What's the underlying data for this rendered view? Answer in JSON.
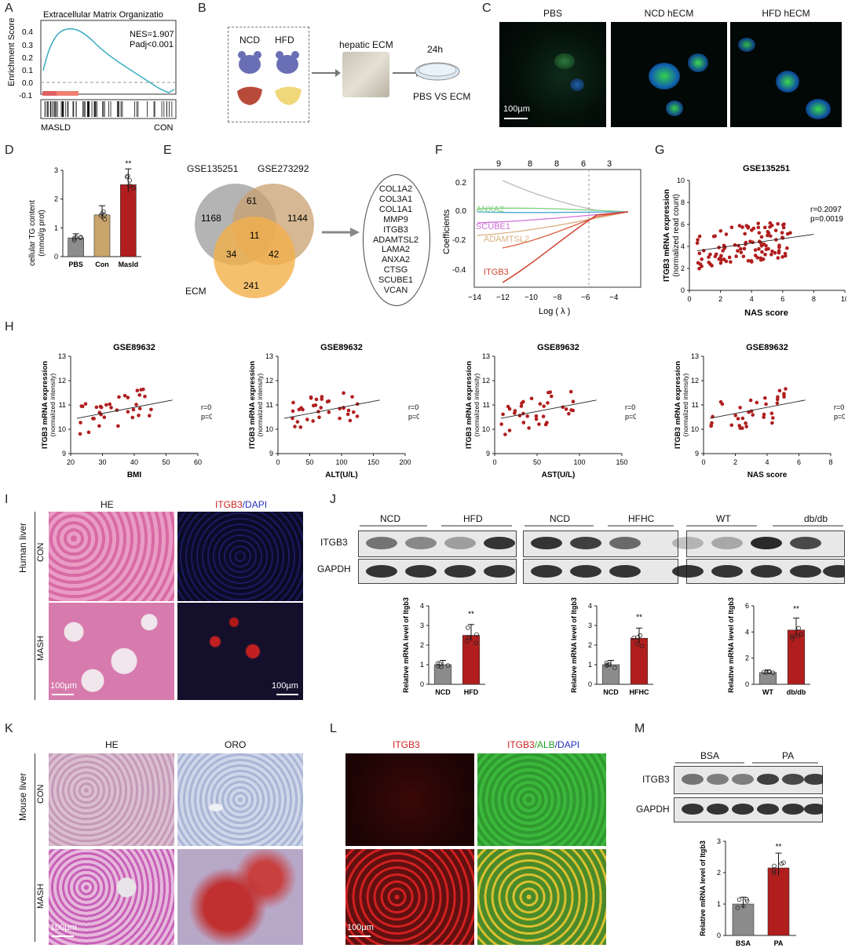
{
  "panel_letters": [
    "A",
    "B",
    "C",
    "D",
    "E",
    "F",
    "G",
    "H",
    "I",
    "J",
    "K",
    "L",
    "M"
  ],
  "A": {
    "title": "Extracellular Matrix Organizatio",
    "ylabel": "Enrichment Score",
    "yticks": [
      "0.4",
      "0.3",
      "0.2",
      "0.1",
      "0.0",
      "-0.1"
    ],
    "nes": "NES=1.907",
    "padj": "Padj<0.001",
    "left_label": "MASLD",
    "right_label": "CON"
  },
  "B": {
    "ncd": "NCD",
    "hfd": "HFD",
    "hepatic_ecm": "hepatic ECM",
    "time": "24h",
    "result": "PBS VS ECM"
  },
  "C": {
    "titles": [
      "PBS",
      "NCD hECM",
      "HFD hECM"
    ],
    "scale": "100µm"
  },
  "D": {
    "ylabel1": "cellular TG content",
    "ylabel2": "(mmol/g prot)",
    "yticks": [
      "0",
      "1",
      "2",
      "3"
    ],
    "sig": "**",
    "chart_data": {
      "type": "bar",
      "categories": [
        "PBS",
        "Con",
        "Masld"
      ],
      "values": [
        0.65,
        1.45,
        2.5
      ],
      "ylabel": "cellular TG content (mmol/g prot)",
      "ylim": [
        0,
        3
      ],
      "colors": [
        "#8c8c8c",
        "#c9a46b",
        "#b01e1e"
      ]
    }
  },
  "E": {
    "sets": [
      "GSE135251",
      "GSE273292",
      "ECM"
    ],
    "counts": [
      "1168",
      "61",
      "1144",
      "11",
      "34",
      "42",
      "241"
    ],
    "genes": [
      "COL1A2",
      "COL3A1",
      "COL1A1",
      "MMP9",
      "ITGB3",
      "ADAMTSL2",
      "LAMA2",
      "ANXA2",
      "CTSG",
      "SCUBE1",
      "VCAN"
    ]
  },
  "F": {
    "ylabel": "Coefficients",
    "xlabel": "Log ( λ )",
    "top_ticks": [
      "9",
      "8",
      "8",
      "6",
      "3"
    ],
    "yticks": [
      "0.2",
      "0.0",
      "-0.2",
      "-0.4"
    ],
    "xticks": [
      "−14",
      "−12",
      "−10",
      "−8",
      "−6",
      "−4"
    ],
    "genes": [
      "ANXA2",
      "SCUBE1",
      "ADAMTSL2",
      "ITGB3"
    ]
  },
  "G": {
    "title": "GSE135251",
    "ylabel1": "ITGB3 mRNA expression",
    "ylabel2": "(normalized read count)",
    "xlabel": "NAS score",
    "r": "r=0.2097",
    "p": "p=0.0019",
    "xticks": [
      "0",
      "2",
      "4",
      "6",
      "8",
      "10"
    ],
    "yticks": [
      "0",
      "2",
      "4",
      "6",
      "8",
      "10"
    ]
  },
  "H": {
    "ylabel1": "ITGB3 mRNA expression",
    "ylabel2": "(normalized intensity)",
    "plots": [
      {
        "title": "GSE89632",
        "xlabel": "BMI",
        "r": "r=0.3152",
        "p": "p=0.0476",
        "xticks": [
          "20",
          "30",
          "40",
          "50",
          "60"
        ]
      },
      {
        "title": "GSE89632",
        "xlabel": "ALT(U/L)",
        "r": "r=0.3315",
        "p": "p=0.0367",
        "xticks": [
          "0",
          "50",
          "100",
          "150",
          "200"
        ]
      },
      {
        "title": "GSE89632",
        "xlabel": "AST(U/L)",
        "r": "r=0.3564",
        "p": "p=0.0240",
        "xticks": [
          "0",
          "50",
          "100",
          "150"
        ]
      },
      {
        "title": "GSE89632",
        "xlabel": "NAS score",
        "r": "r=0.4449",
        "p": "p=0.0034",
        "xticks": [
          "0",
          "2",
          "4",
          "6",
          "8"
        ]
      }
    ],
    "yticks": [
      "9",
      "10",
      "11",
      "12",
      "13"
    ]
  },
  "I": {
    "col1": "HE",
    "col2_a": "ITGB3",
    "col2_b": "/DAPI",
    "row_group": "Human liver",
    "rows": [
      "CON",
      "MASH"
    ],
    "scale": "100µm"
  },
  "J": {
    "groups": [
      {
        "a": "NCD",
        "b": "HFD"
      },
      {
        "a": "NCD",
        "b": "HFHC"
      },
      {
        "a": "WT",
        "b": "db/db"
      }
    ],
    "itgb3": "ITGB3",
    "gapdh": "GAPDH",
    "ylabel": "Relative mRNA  level of Itgb3",
    "sig": "**",
    "charts": [
      {
        "type": "bar",
        "categories": [
          "NCD",
          "HFD"
        ],
        "values": [
          1.0,
          2.5
        ],
        "ylim": [
          0,
          4
        ],
        "yticks": [
          "0",
          "1",
          "2",
          "3",
          "4"
        ]
      },
      {
        "type": "bar",
        "categories": [
          "NCD",
          "HFHC"
        ],
        "values": [
          1.0,
          2.35
        ],
        "ylim": [
          0,
          4
        ],
        "yticks": [
          "0",
          "1",
          "2",
          "3",
          "4"
        ]
      },
      {
        "type": "bar",
        "categories": [
          "WT",
          "db/db"
        ],
        "values": [
          0.9,
          4.15
        ],
        "ylim": [
          0,
          6
        ],
        "yticks": [
          "0",
          "2",
          "4",
          "6"
        ]
      }
    ]
  },
  "K": {
    "col1": "HE",
    "col2": "ORO",
    "row_group": "Mouse  liver",
    "rows": [
      "CON",
      "MASH"
    ],
    "scale": "100µm"
  },
  "L": {
    "col1": "ITGB3",
    "col2_a": "ITGB3",
    "col2_b": "/ALB",
    "col2_c": "/DAPI",
    "scale": "100µm"
  },
  "M": {
    "bsa": "BSA",
    "pa": "PA",
    "itgb3": "ITGB3",
    "gapdh": "GAPDH",
    "ylabel": "Relative mRNA  level of Itgb3",
    "sig": "**",
    "yticks": [
      "0",
      "1",
      "2",
      "3"
    ],
    "chart_data": {
      "type": "bar",
      "categories": [
        "BSA",
        "PA"
      ],
      "values": [
        1.0,
        2.15
      ],
      "ylim": [
        0,
        3
      ]
    }
  },
  "colors": {
    "dark_red": "#b01e1e",
    "gray": "#8c8c8c",
    "teal": "#3aaec0",
    "tan": "#c9a46b"
  }
}
